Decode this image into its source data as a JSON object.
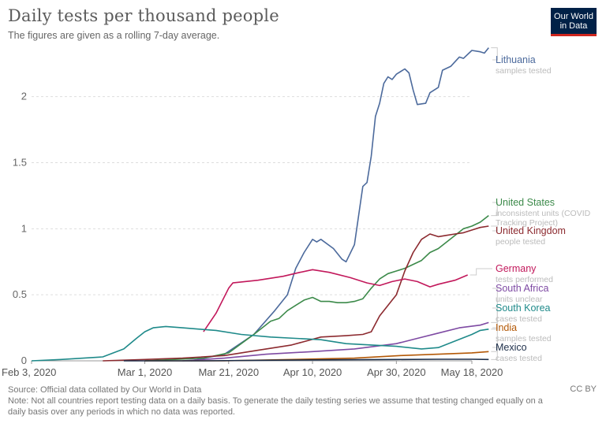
{
  "title": "Daily tests per thousand people",
  "subtitle": "The figures are given as a rolling 7-day average.",
  "logo": {
    "line1": "Our World",
    "line2": "in Data"
  },
  "footer": {
    "source": "Source: Official data collated by Our World in Data",
    "note": "Note: Not all countries report testing data on a daily basis. To generate the daily testing series we assume that testing changed equally on a daily basis over any periods in which no data was reported."
  },
  "license": "CC BY",
  "chart_data": {
    "type": "line",
    "x_axis": {
      "ticks": [
        "Feb 3, 2020",
        "Mar 1, 2020",
        "Mar 21, 2020",
        "Apr 10, 2020",
        "Apr 30, 2020",
        "May 18, 2020"
      ],
      "range": [
        "2020-02-03",
        "2020-05-18"
      ]
    },
    "y_axis": {
      "ticks": [
        "0",
        "0.5",
        "1",
        "1.5",
        "2"
      ],
      "range": [
        0,
        2.35
      ]
    },
    "grid": "horizontal dashed",
    "legend": "labels at right end of lines",
    "series": [
      {
        "name": "Lithuania",
        "note": "samples tested",
        "color": "#4c6a9c",
        "points": [
          [
            "2020-03-12",
            0.0
          ],
          [
            "2020-03-20",
            0.05
          ],
          [
            "2020-03-27",
            0.2
          ],
          [
            "2020-04-01",
            0.38
          ],
          [
            "2020-04-04",
            0.5
          ],
          [
            "2020-04-06",
            0.7
          ],
          [
            "2020-04-08",
            0.82
          ],
          [
            "2020-04-10",
            0.92
          ],
          [
            "2020-04-11",
            0.9
          ],
          [
            "2020-04-12",
            0.92
          ],
          [
            "2020-04-15",
            0.85
          ],
          [
            "2020-04-17",
            0.77
          ],
          [
            "2020-04-18",
            0.75
          ],
          [
            "2020-04-20",
            0.88
          ],
          [
            "2020-04-22",
            1.32
          ],
          [
            "2020-04-23",
            1.35
          ],
          [
            "2020-04-24",
            1.55
          ],
          [
            "2020-04-25",
            1.85
          ],
          [
            "2020-04-26",
            1.95
          ],
          [
            "2020-04-27",
            2.1
          ],
          [
            "2020-04-28",
            2.15
          ],
          [
            "2020-04-29",
            2.13
          ],
          [
            "2020-04-30",
            2.17
          ],
          [
            "2020-05-02",
            2.21
          ],
          [
            "2020-05-03",
            2.18
          ],
          [
            "2020-05-04",
            2.05
          ],
          [
            "2020-05-05",
            1.94
          ],
          [
            "2020-05-07",
            1.95
          ],
          [
            "2020-05-08",
            2.03
          ],
          [
            "2020-05-10",
            2.07
          ],
          [
            "2020-05-11",
            2.2
          ],
          [
            "2020-05-13",
            2.23
          ],
          [
            "2020-05-15",
            2.3
          ],
          [
            "2020-05-16",
            2.29
          ],
          [
            "2020-05-18",
            2.35
          ],
          [
            "2020-05-20",
            2.34
          ],
          [
            "2020-05-21",
            2.33
          ],
          [
            "2020-05-22",
            2.37
          ]
        ]
      },
      {
        "name": "United States",
        "note": "inconsistent units (COVID Tracking Project)",
        "color": "#3c8a4a",
        "points": [
          [
            "2020-03-01",
            0.0
          ],
          [
            "2020-03-15",
            0.02
          ],
          [
            "2020-03-21",
            0.06
          ],
          [
            "2020-03-27",
            0.2
          ],
          [
            "2020-03-31",
            0.3
          ],
          [
            "2020-04-02",
            0.32
          ],
          [
            "2020-04-04",
            0.38
          ],
          [
            "2020-04-06",
            0.42
          ],
          [
            "2020-04-08",
            0.46
          ],
          [
            "2020-04-10",
            0.48
          ],
          [
            "2020-04-12",
            0.45
          ],
          [
            "2020-04-14",
            0.45
          ],
          [
            "2020-04-16",
            0.44
          ],
          [
            "2020-04-18",
            0.44
          ],
          [
            "2020-04-20",
            0.45
          ],
          [
            "2020-04-22",
            0.47
          ],
          [
            "2020-04-24",
            0.55
          ],
          [
            "2020-04-26",
            0.62
          ],
          [
            "2020-04-28",
            0.66
          ],
          [
            "2020-04-30",
            0.68
          ],
          [
            "2020-05-02",
            0.7
          ],
          [
            "2020-05-04",
            0.73
          ],
          [
            "2020-05-06",
            0.76
          ],
          [
            "2020-05-08",
            0.82
          ],
          [
            "2020-05-10",
            0.85
          ],
          [
            "2020-05-12",
            0.9
          ],
          [
            "2020-05-14",
            0.95
          ],
          [
            "2020-05-16",
            1.0
          ],
          [
            "2020-05-18",
            1.02
          ],
          [
            "2020-05-20",
            1.05
          ],
          [
            "2020-05-22",
            1.1
          ]
        ]
      },
      {
        "name": "United Kingdom",
        "note": "people tested",
        "color": "#8c2a2f",
        "points": [
          [
            "2020-02-20",
            0.0
          ],
          [
            "2020-03-01",
            0.01
          ],
          [
            "2020-03-10",
            0.02
          ],
          [
            "2020-03-20",
            0.04
          ],
          [
            "2020-03-28",
            0.08
          ],
          [
            "2020-04-05",
            0.12
          ],
          [
            "2020-04-12",
            0.18
          ],
          [
            "2020-04-18",
            0.19
          ],
          [
            "2020-04-22",
            0.2
          ],
          [
            "2020-04-24",
            0.22
          ],
          [
            "2020-04-26",
            0.34
          ],
          [
            "2020-04-28",
            0.42
          ],
          [
            "2020-04-30",
            0.5
          ],
          [
            "2020-05-02",
            0.68
          ],
          [
            "2020-05-04",
            0.82
          ],
          [
            "2020-05-06",
            0.92
          ],
          [
            "2020-05-08",
            0.96
          ],
          [
            "2020-05-10",
            0.94
          ],
          [
            "2020-05-12",
            0.95
          ],
          [
            "2020-05-14",
            0.96
          ],
          [
            "2020-05-16",
            0.97
          ],
          [
            "2020-05-18",
            0.99
          ],
          [
            "2020-05-20",
            1.01
          ],
          [
            "2020-05-22",
            1.02
          ]
        ]
      },
      {
        "name": "Germany",
        "note": "tests performed",
        "color": "#c2185b",
        "points": [
          [
            "2020-03-15",
            0.22
          ],
          [
            "2020-03-18",
            0.36
          ],
          [
            "2020-03-21",
            0.55
          ],
          [
            "2020-03-22",
            0.59
          ],
          [
            "2020-03-28",
            0.61
          ],
          [
            "2020-04-03",
            0.64
          ],
          [
            "2020-04-07",
            0.67
          ],
          [
            "2020-04-10",
            0.69
          ],
          [
            "2020-04-14",
            0.67
          ],
          [
            "2020-04-19",
            0.63
          ],
          [
            "2020-04-23",
            0.59
          ],
          [
            "2020-04-26",
            0.57
          ],
          [
            "2020-04-29",
            0.6
          ],
          [
            "2020-05-02",
            0.62
          ],
          [
            "2020-05-05",
            0.6
          ],
          [
            "2020-05-08",
            0.56
          ],
          [
            "2020-05-10",
            0.58
          ],
          [
            "2020-05-14",
            0.61
          ],
          [
            "2020-05-17",
            0.65
          ]
        ]
      },
      {
        "name": "South Africa",
        "note": "units unclear",
        "color": "#7e4aa3",
        "points": [
          [
            "2020-03-10",
            0.0
          ],
          [
            "2020-03-20",
            0.02
          ],
          [
            "2020-03-30",
            0.05
          ],
          [
            "2020-04-10",
            0.07
          ],
          [
            "2020-04-20",
            0.09
          ],
          [
            "2020-04-30",
            0.13
          ],
          [
            "2020-05-05",
            0.17
          ],
          [
            "2020-05-10",
            0.21
          ],
          [
            "2020-05-15",
            0.25
          ],
          [
            "2020-05-20",
            0.27
          ],
          [
            "2020-05-22",
            0.29
          ]
        ]
      },
      {
        "name": "South Korea",
        "note": "cases tested",
        "color": "#1f8a8a",
        "points": [
          [
            "2020-02-03",
            0.0
          ],
          [
            "2020-02-10",
            0.01
          ],
          [
            "2020-02-20",
            0.03
          ],
          [
            "2020-02-25",
            0.09
          ],
          [
            "2020-02-28",
            0.17
          ],
          [
            "2020-03-01",
            0.22
          ],
          [
            "2020-03-03",
            0.25
          ],
          [
            "2020-03-06",
            0.26
          ],
          [
            "2020-03-10",
            0.25
          ],
          [
            "2020-03-14",
            0.24
          ],
          [
            "2020-03-18",
            0.23
          ],
          [
            "2020-03-24",
            0.2
          ],
          [
            "2020-03-31",
            0.18
          ],
          [
            "2020-04-06",
            0.17
          ],
          [
            "2020-04-12",
            0.16
          ],
          [
            "2020-04-18",
            0.13
          ],
          [
            "2020-04-24",
            0.12
          ],
          [
            "2020-04-30",
            0.11
          ],
          [
            "2020-05-06",
            0.09
          ],
          [
            "2020-05-10",
            0.1
          ],
          [
            "2020-05-14",
            0.15
          ],
          [
            "2020-05-18",
            0.2
          ],
          [
            "2020-05-20",
            0.23
          ],
          [
            "2020-05-22",
            0.24
          ]
        ]
      },
      {
        "name": "India",
        "note": "samples tested",
        "color": "#b35806",
        "points": [
          [
            "2020-03-01",
            0.0
          ],
          [
            "2020-03-20",
            0.0
          ],
          [
            "2020-04-05",
            0.01
          ],
          [
            "2020-04-20",
            0.02
          ],
          [
            "2020-05-01",
            0.04
          ],
          [
            "2020-05-10",
            0.05
          ],
          [
            "2020-05-18",
            0.06
          ],
          [
            "2020-05-22",
            0.07
          ]
        ]
      },
      {
        "name": "Mexico",
        "note": "cases tested",
        "color": "#1e2f4a",
        "points": [
          [
            "2020-02-25",
            0.0
          ],
          [
            "2020-03-15",
            0.0
          ],
          [
            "2020-04-01",
            0.005
          ],
          [
            "2020-04-15",
            0.008
          ],
          [
            "2020-04-30",
            0.01
          ],
          [
            "2020-05-10",
            0.012
          ],
          [
            "2020-05-18",
            0.012
          ],
          [
            "2020-05-22",
            0.01
          ]
        ]
      }
    ]
  }
}
